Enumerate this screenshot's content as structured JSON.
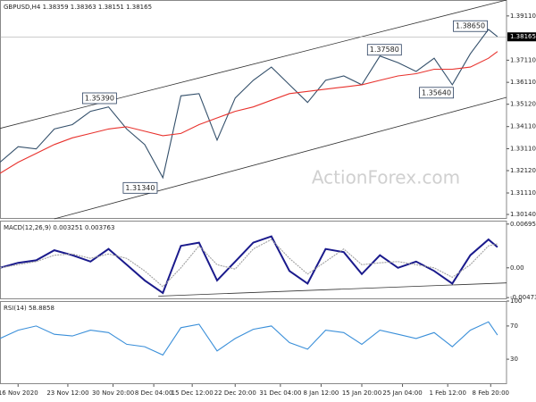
{
  "watermark": "ActionForex.com",
  "chart_data": [
    {
      "type": "line",
      "title": "GBPUSD,H4 1.38359 1.38363 1.38151 1.38165",
      "xlim": [
        0,
        112
      ],
      "ylim": [
        1.2994,
        1.3983
      ],
      "yticks": [
        {
          "value": 1.3911,
          "label": "1.39110"
        },
        {
          "value": 1.3711,
          "label": "1.37110"
        },
        {
          "value": 1.3611,
          "label": "1.36110"
        },
        {
          "value": 1.3512,
          "label": "1.35120"
        },
        {
          "value": 1.3411,
          "label": "1.34110"
        },
        {
          "value": 1.3311,
          "label": "1.33110"
        },
        {
          "value": 1.3212,
          "label": "1.32120"
        },
        {
          "value": 1.3111,
          "label": "1.31110"
        },
        {
          "value": 1.3014,
          "label": "1.30140"
        }
      ],
      "current_price": 1.38165,
      "grid": false,
      "x": [
        0,
        4,
        8,
        12,
        16,
        20,
        24,
        28,
        32,
        36,
        40,
        44,
        48,
        52,
        56,
        60,
        64,
        68,
        72,
        76,
        80,
        84,
        88,
        92,
        96,
        100,
        104,
        108,
        110
      ],
      "series": [
        {
          "color": "#34506b",
          "values": [
            1.325,
            1.332,
            1.331,
            1.34,
            1.342,
            1.348,
            1.35,
            1.34,
            1.333,
            1.318,
            1.355,
            1.356,
            1.335,
            1.354,
            1.362,
            1.368,
            1.36,
            1.352,
            1.362,
            1.364,
            1.36,
            1.373,
            1.37,
            1.366,
            1.372,
            1.36,
            1.374,
            1.385,
            1.3817
          ]
        },
        {
          "color": "#e8322d",
          "values": [
            1.32,
            1.325,
            1.329,
            1.333,
            1.336,
            1.338,
            1.34,
            1.341,
            1.339,
            1.337,
            1.338,
            1.342,
            1.345,
            1.348,
            1.35,
            1.353,
            1.356,
            1.357,
            1.358,
            1.359,
            1.36,
            1.362,
            1.364,
            1.365,
            1.367,
            1.367,
            1.368,
            1.372,
            1.375
          ]
        }
      ],
      "trendlines": [
        {
          "x": [
            0,
            112
          ],
          "values": [
            1.3403,
            1.3983
          ]
        },
        {
          "x": [
            12,
            112
          ],
          "values": [
            1.2994,
            1.3543
          ]
        }
      ],
      "annotations": [
        {
          "x": 22,
          "value": 1.3539,
          "label": "1.35390"
        },
        {
          "x": 31,
          "value": 1.3134,
          "label": "1.31340"
        },
        {
          "x": 85,
          "value": 1.3758,
          "label": "1.37580"
        },
        {
          "x": 104,
          "value": 1.3865,
          "label": "1.38650"
        },
        {
          "x": 96.5,
          "value": 1.3564,
          "label": "1.35640"
        }
      ]
    },
    {
      "type": "line",
      "title": "MACD(12,26,9) 0.003251 0.003763",
      "xlim": [
        0,
        112
      ],
      "ylim": [
        -0.005,
        0.0075
      ],
      "yticks": [
        0.006956,
        {
          "value": 0,
          "label": "0.00"
        },
        -0.004736
      ],
      "x": [
        0,
        4,
        8,
        12,
        16,
        20,
        24,
        28,
        32,
        36,
        40,
        44,
        48,
        52,
        56,
        60,
        64,
        68,
        72,
        76,
        80,
        84,
        88,
        92,
        96,
        100,
        104,
        108,
        110
      ],
      "series": [
        {
          "color": "#1a1a8c",
          "values": [
            0.0,
            0.0008,
            0.0012,
            0.0028,
            0.002,
            0.001,
            0.003,
            0.0005,
            -0.002,
            -0.004,
            0.0035,
            0.004,
            -0.002,
            0.001,
            0.004,
            0.005,
            -0.0005,
            -0.0025,
            0.003,
            0.0025,
            -0.001,
            0.002,
            0.0,
            0.001,
            -0.0005,
            -0.0025,
            0.002,
            0.0045,
            0.0033
          ]
        },
        {
          "color": "#a0a0a0",
          "values": [
            0.0,
            0.0005,
            0.001,
            0.002,
            0.0022,
            0.0015,
            0.0022,
            0.0015,
            -0.0005,
            -0.003,
            0.0,
            0.0035,
            0.0005,
            -0.0002,
            0.003,
            0.0045,
            0.0015,
            -0.001,
            0.001,
            0.003,
            0.0005,
            0.0008,
            0.001,
            0.0005,
            0.0,
            -0.0015,
            0.0005,
            0.0035,
            0.0038
          ]
        }
      ],
      "trendlines": [
        {
          "x": [
            35,
            112
          ],
          "values": [
            -0.0045,
            -0.0024
          ]
        }
      ]
    },
    {
      "type": "line",
      "title": "RSI(14) 58.8858",
      "xlim": [
        0,
        112
      ],
      "ylim": [
        0,
        100
      ],
      "yticks": [
        100,
        70,
        30
      ],
      "x": [
        0,
        4,
        8,
        12,
        16,
        20,
        24,
        28,
        32,
        36,
        40,
        44,
        48,
        52,
        56,
        60,
        64,
        68,
        72,
        76,
        80,
        84,
        88,
        92,
        96,
        100,
        104,
        108,
        110
      ],
      "series": [
        {
          "color": "#3a8fd9",
          "values": [
            55,
            65,
            70,
            60,
            58,
            65,
            62,
            48,
            45,
            35,
            68,
            72,
            40,
            55,
            66,
            70,
            50,
            42,
            65,
            62,
            48,
            65,
            60,
            55,
            62,
            45,
            65,
            75,
            59
          ]
        }
      ],
      "xticks": [
        {
          "value": 4,
          "label": "16 Nov 2020"
        },
        {
          "value": 15,
          "label": "23 Nov 12:00"
        },
        {
          "value": 25,
          "label": "30 Nov 20:00"
        },
        {
          "value": 34,
          "label": "8 Dec 04:00"
        },
        {
          "value": 42.5,
          "label": "15 Dec 12:00"
        },
        {
          "value": 52,
          "label": "22 Dec 20:00"
        },
        {
          "value": 62,
          "label": "31 Dec 04:00"
        },
        {
          "value": 71,
          "label": "8 Jan 12:00"
        },
        {
          "value": 80,
          "label": "15 Jan 20:00"
        },
        {
          "value": 89,
          "label": "25 Jan 04:00"
        },
        {
          "value": 99,
          "label": "1 Feb 12:00"
        },
        {
          "value": 108.5,
          "label": "8 Feb 20:00"
        }
      ]
    }
  ]
}
